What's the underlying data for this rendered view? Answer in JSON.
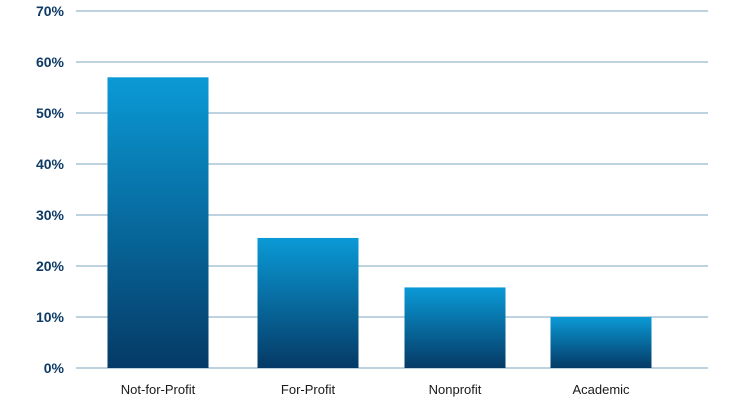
{
  "chart_data": {
    "type": "bar",
    "title": "",
    "xlabel": "",
    "ylabel": "",
    "categories": [
      "Not-for-Profit",
      "For-Profit",
      "Nonprofit",
      "Academic"
    ],
    "values": [
      57,
      25.5,
      15.8,
      10
    ],
    "ylim": [
      0,
      70
    ],
    "yticks": [
      0,
      10,
      20,
      30,
      40,
      50,
      60,
      70
    ],
    "ytick_labels": [
      "0%",
      "10%",
      "20%",
      "30%",
      "40%",
      "50%",
      "60%",
      "70%"
    ],
    "grid": true,
    "legend": "none",
    "colors": {
      "bar_top": "#0a9ad6",
      "bar_bottom": "#053a66",
      "tick_text": "#0d3b66",
      "gridline": "#7fa6bf"
    }
  }
}
